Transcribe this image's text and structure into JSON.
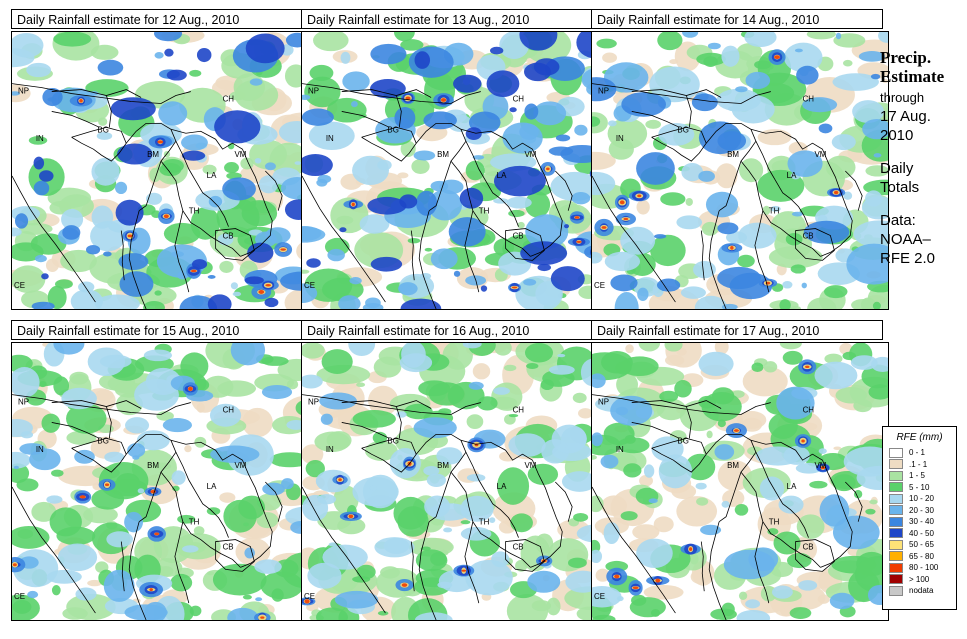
{
  "panels": [
    {
      "title": "Daily Rainfall estimate for  12 Aug., 2010",
      "seed": 12,
      "intensity": 0.7
    },
    {
      "title": "Daily Rainfall estimate for  13 Aug., 2010",
      "seed": 13,
      "intensity": 0.75
    },
    {
      "title": "Daily Rainfall estimate for  14 Aug., 2010",
      "seed": 14,
      "intensity": 0.65
    },
    {
      "title": "Daily Rainfall estimate for  15 Aug., 2010",
      "seed": 15,
      "intensity": 0.6
    },
    {
      "title": "Daily Rainfall estimate for  16 Aug., 2010",
      "seed": 16,
      "intensity": 0.55
    },
    {
      "title": "Daily Rainfall estimate for  17 Aug., 2010",
      "seed": 17,
      "intensity": 0.55
    }
  ],
  "map_labels": [
    "NP",
    "CH",
    "IN",
    "BG",
    "BM",
    "VM",
    "LA",
    "TH",
    "CB",
    "CE"
  ],
  "side": {
    "heading1": "Precip.",
    "heading2": "Estimate",
    "through": "through",
    "date1": "17 Aug.",
    "date2": "2010",
    "daily1": "Daily",
    "daily2": "Totals",
    "data1": "Data:",
    "data2": "NOAA–",
    "data3": "RFE 2.0"
  },
  "legend": {
    "title": "RFE (mm)",
    "items": [
      {
        "label": "0 - 1",
        "color": "#ffffff"
      },
      {
        "label": ".1 - 1",
        "color": "#eedcc3"
      },
      {
        "label": "1 - 5",
        "color": "#a9e3a2"
      },
      {
        "label": "5 - 10",
        "color": "#5ad16a"
      },
      {
        "label": "10 - 20",
        "color": "#a8d8f0"
      },
      {
        "label": "20 - 30",
        "color": "#6ab4ec"
      },
      {
        "label": "30 - 40",
        "color": "#3c86e0"
      },
      {
        "label": "40 - 50",
        "color": "#1e46c8"
      },
      {
        "label": "50 - 65",
        "color": "#fde277"
      },
      {
        "label": "65 - 80",
        "color": "#ffb000"
      },
      {
        "label": "80 - 100",
        "color": "#f03c00"
      },
      {
        "label": "> 100",
        "color": "#a00000"
      },
      {
        "label": "nodata",
        "color": "#c8c8c8"
      }
    ]
  }
}
